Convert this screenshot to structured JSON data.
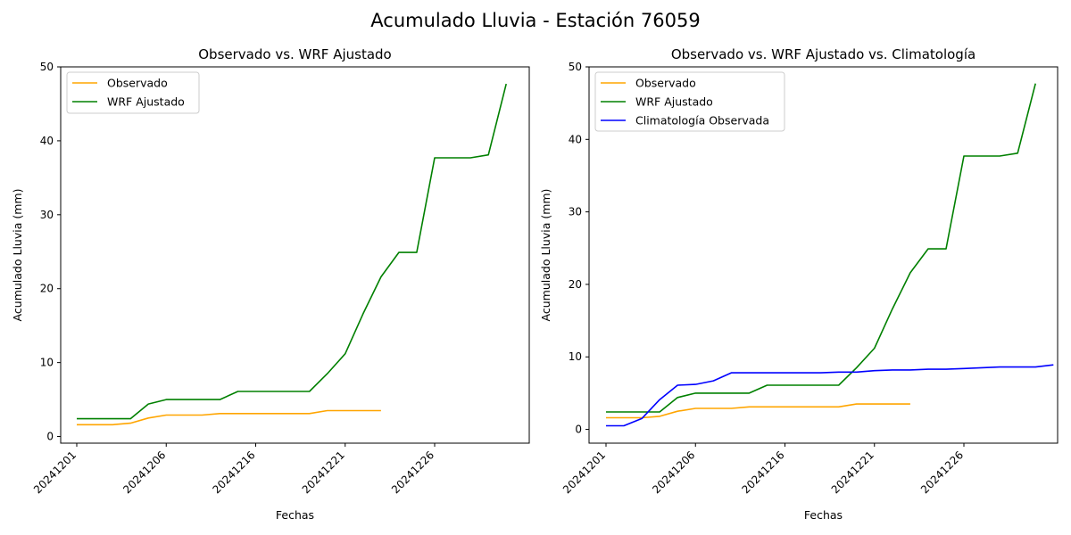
{
  "figure": {
    "suptitle": "Acumulado Lluvia - Estación 76059"
  },
  "chart_data": [
    {
      "type": "line",
      "title": "Observado vs. WRF Ajustado",
      "xlabel": "Fechas",
      "ylabel": "Acumulado Lluvia (mm)",
      "x_ticks": [
        "20241201",
        "20241206",
        "20241216",
        "20241221",
        "20241226"
      ],
      "y_ticks": [
        0,
        10,
        20,
        30,
        40,
        50
      ],
      "ylim": [
        -0.9,
        50
      ],
      "legend": "top-left",
      "grid": false,
      "series": [
        {
          "name": "Observado",
          "color": "#ffa500",
          "values": [
            1.6,
            1.6,
            1.6,
            1.8,
            2.5,
            2.9,
            2.9,
            2.9,
            3.1,
            3.1,
            3.1,
            3.1,
            3.1,
            3.1,
            3.5,
            3.5,
            3.5,
            3.5
          ]
        },
        {
          "name": "WRF Ajustado",
          "color": "#008000",
          "values": [
            2.4,
            2.4,
            2.4,
            2.4,
            4.4,
            5.0,
            5.0,
            5.0,
            5.0,
            6.1,
            6.1,
            6.1,
            6.1,
            6.1,
            8.5,
            11.2,
            16.6,
            21.6,
            24.9,
            24.9,
            37.7,
            37.7,
            37.7,
            38.1,
            47.7
          ]
        }
      ]
    },
    {
      "type": "line",
      "title": "Observado vs. WRF Ajustado vs. Climatología",
      "xlabel": "Fechas",
      "ylabel": "Acumulado Lluvia (mm)",
      "x_ticks": [
        "20241201",
        "20241206",
        "20241216",
        "20241221",
        "20241226"
      ],
      "y_ticks": [
        0,
        10,
        20,
        30,
        40,
        50
      ],
      "ylim": [
        -1.9,
        50
      ],
      "legend": "top-left",
      "grid": false,
      "series": [
        {
          "name": "Observado",
          "color": "#ffa500",
          "values": [
            1.6,
            1.6,
            1.6,
            1.8,
            2.5,
            2.9,
            2.9,
            2.9,
            3.1,
            3.1,
            3.1,
            3.1,
            3.1,
            3.1,
            3.5,
            3.5,
            3.5,
            3.5
          ]
        },
        {
          "name": "WRF Ajustado",
          "color": "#008000",
          "values": [
            2.4,
            2.4,
            2.4,
            2.4,
            4.4,
            5.0,
            5.0,
            5.0,
            5.0,
            6.1,
            6.1,
            6.1,
            6.1,
            6.1,
            8.5,
            11.2,
            16.6,
            21.6,
            24.9,
            24.9,
            37.7,
            37.7,
            37.7,
            38.1,
            47.7
          ]
        },
        {
          "name": "Climatología Observada",
          "color": "#0000ff",
          "values": [
            0.5,
            0.5,
            1.5,
            4.1,
            6.1,
            6.2,
            6.7,
            7.8,
            7.8,
            7.8,
            7.8,
            7.8,
            7.8,
            7.9,
            7.9,
            8.1,
            8.2,
            8.2,
            8.3,
            8.3,
            8.4,
            8.5,
            8.6,
            8.6,
            8.6,
            8.9
          ]
        }
      ]
    }
  ]
}
